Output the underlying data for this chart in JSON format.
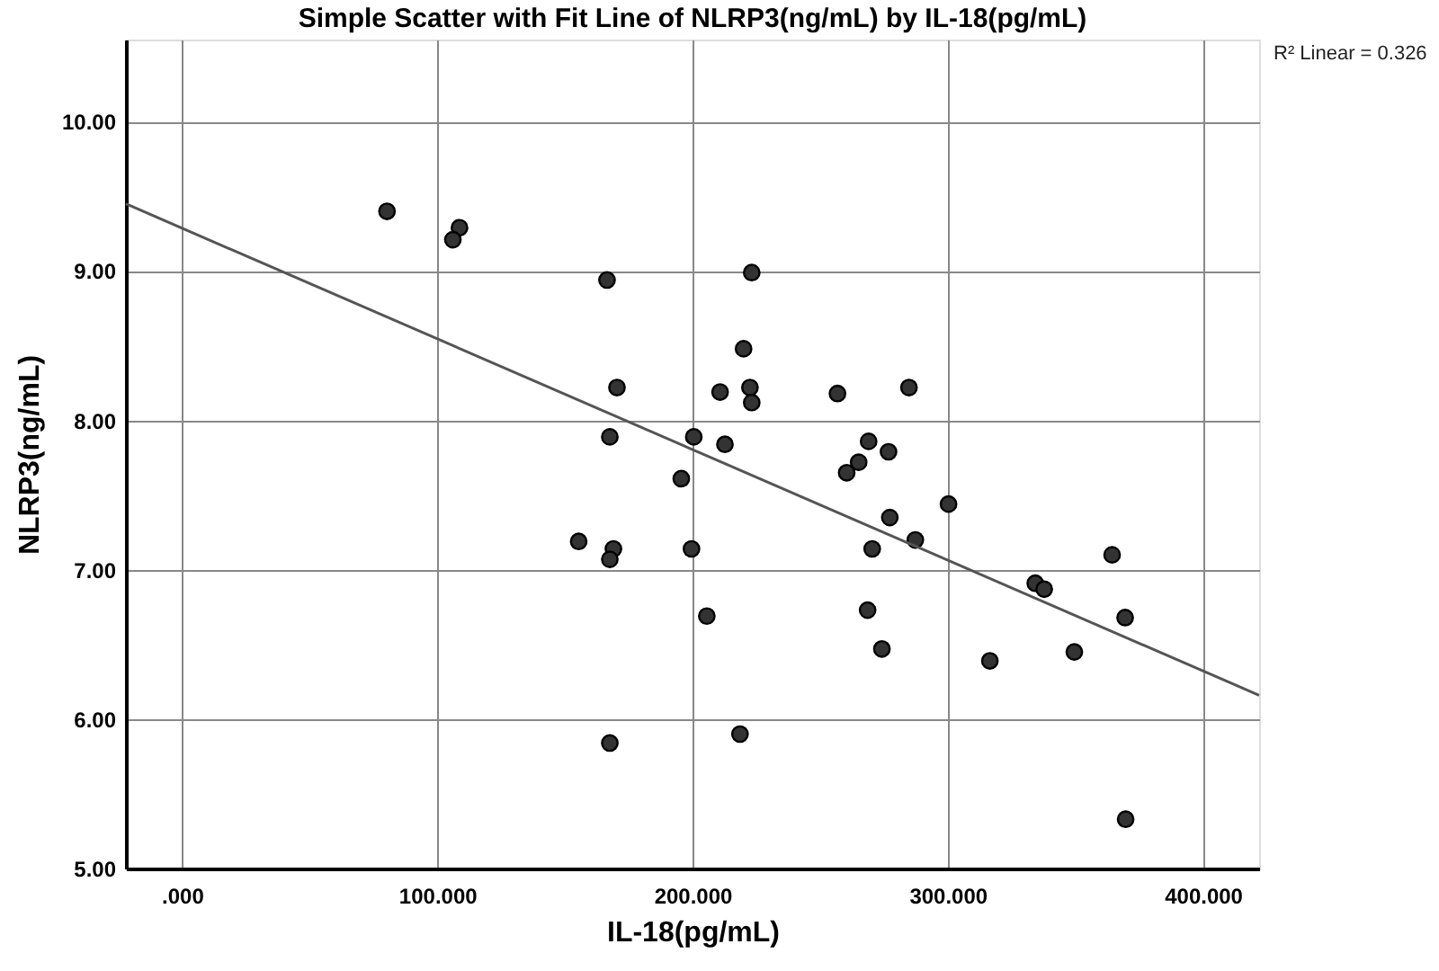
{
  "chart_data": {
    "type": "scatter",
    "title": "Simple Scatter with Fit Line of NLRP3(ng/mL) by IL-18(pg/mL)",
    "xlabel": "IL-18(pg/mL)",
    "ylabel": "NLRP3(ng/mL)",
    "annotations": [
      "R² Linear = 0.326"
    ],
    "series": [
      {
        "color": "#333333",
        "marker": "circle",
        "x": [
          80.3,
          108.7,
          106.1,
          166.5,
          170.4,
          167.6,
          200.5,
          223.2,
          220.0,
          210.8,
          222.5,
          223.2,
          256.8,
          284.8,
          212.7,
          269.0,
          276.8,
          265.1,
          260.4,
          300.3,
          277.3,
          287.3,
          270.4,
          199.6,
          364.4,
          334.3,
          337.8,
          205.6,
          268.6,
          369.5,
          274.2,
          349.6,
          316.5,
          218.6,
          369.7,
          195.6,
          155.4,
          169.0,
          167.6,
          167.6
        ],
        "values": [
          9.4,
          9.29,
          9.21,
          8.94,
          8.22,
          7.89,
          7.89,
          8.99,
          8.48,
          8.19,
          8.22,
          8.12,
          8.18,
          8.22,
          7.84,
          7.86,
          7.79,
          7.72,
          7.65,
          7.44,
          7.35,
          7.2,
          7.14,
          7.14,
          7.1,
          6.91,
          6.87,
          6.69,
          6.73,
          6.68,
          6.47,
          6.45,
          6.39,
          5.9,
          5.33,
          7.61,
          7.19,
          7.14,
          7.07,
          5.84
        ]
      },
      {
        "type": "line",
        "color": "#555555",
        "line_style": "solid",
        "x": [
          -22,
          422
        ],
        "values": [
          9.45,
          6.16
        ]
      }
    ],
    "xlim": [
      -22,
      422
    ],
    "ylim": [
      5,
      10.55
    ],
    "xticks": [
      {
        "value": 0,
        "label": ".000"
      },
      {
        "value": 100,
        "label": "100.000"
      },
      {
        "value": 200,
        "label": "200.000"
      },
      {
        "value": 300,
        "label": "300.000"
      },
      {
        "value": 400,
        "label": "400.000"
      }
    ],
    "yticks": [
      {
        "value": 5,
        "label": "5.00"
      },
      {
        "value": 6,
        "label": "6.00"
      },
      {
        "value": 7,
        "label": "7.00"
      },
      {
        "value": 8,
        "label": "8.00"
      },
      {
        "value": 9,
        "label": "9.00"
      },
      {
        "value": 10,
        "label": "10.00"
      }
    ],
    "grid": true
  }
}
